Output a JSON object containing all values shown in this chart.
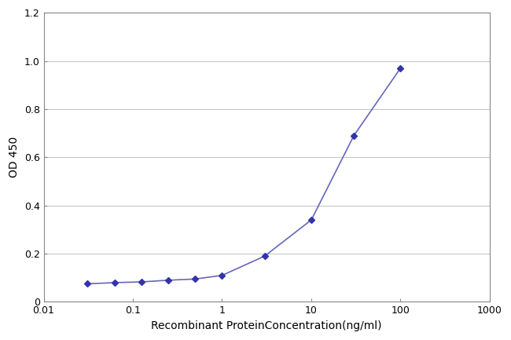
{
  "x_values": [
    0.031,
    0.063,
    0.125,
    0.25,
    0.5,
    1.0,
    3.0,
    10.0,
    30.0,
    100.0
  ],
  "y_values": [
    0.075,
    0.08,
    0.083,
    0.09,
    0.095,
    0.11,
    0.19,
    0.34,
    0.69,
    0.97
  ],
  "line_color": "#6666bb",
  "marker_color": "#3333aa",
  "marker_style": "D",
  "marker_size": 4,
  "line_width": 1.2,
  "xlabel": "Recombinant ProteinConcentration(ng/ml)",
  "ylabel": "OD 450",
  "xlim_log": [
    0.01,
    1000
  ],
  "ylim": [
    0,
    1.2
  ],
  "yticks": [
    0,
    0.2,
    0.4,
    0.6,
    0.8,
    1.0,
    1.2
  ],
  "xtick_values": [
    0.01,
    0.1,
    1,
    10,
    100,
    1000
  ],
  "xtick_labels": [
    "0.01",
    "0.1",
    "1",
    "10",
    "100",
    "1000"
  ],
  "plot_bg_color": "#ffffff",
  "fig_bg_color": "#ffffff",
  "grid_color": "#c8c8c8",
  "spine_color": "#888888",
  "xlabel_fontsize": 10,
  "ylabel_fontsize": 10,
  "tick_fontsize": 9
}
